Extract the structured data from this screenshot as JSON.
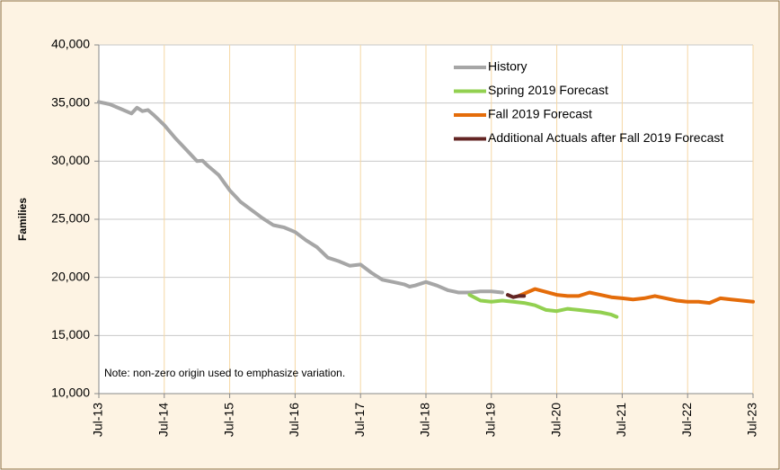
{
  "chart_data": {
    "type": "line",
    "y_label": "Families",
    "note": "Note: non-zero origin used to emphasize variation.",
    "ylim": [
      10000,
      40000
    ],
    "yticks": [
      {
        "value": 10000,
        "label": "10,000"
      },
      {
        "value": 15000,
        "label": "15,000"
      },
      {
        "value": 20000,
        "label": "20,000"
      },
      {
        "value": 25000,
        "label": "25,000"
      },
      {
        "value": 30000,
        "label": "30,000"
      },
      {
        "value": 35000,
        "label": "35,000"
      },
      {
        "value": 40000,
        "label": "40,000"
      }
    ],
    "xlim": [
      "2013-07",
      "2023-07"
    ],
    "xticks": [
      {
        "value": "2013-07",
        "label": "Jul-13"
      },
      {
        "value": "2014-07",
        "label": "Jul-14"
      },
      {
        "value": "2015-07",
        "label": "Jul-15"
      },
      {
        "value": "2016-07",
        "label": "Jul-16"
      },
      {
        "value": "2017-07",
        "label": "Jul-17"
      },
      {
        "value": "2018-07",
        "label": "Jul-18"
      },
      {
        "value": "2019-07",
        "label": "Jul-19"
      },
      {
        "value": "2020-07",
        "label": "Jul-20"
      },
      {
        "value": "2021-07",
        "label": "Jul-21"
      },
      {
        "value": "2022-07",
        "label": "Jul-22"
      },
      {
        "value": "2023-07",
        "label": "Jul-23"
      }
    ],
    "grid": true,
    "legend": "top-right",
    "series": [
      {
        "name": "History",
        "color": "#a6a6a6",
        "x": [
          "2013-07",
          "2013-09",
          "2013-11",
          "2014-01",
          "2014-02",
          "2014-03",
          "2014-04",
          "2014-05",
          "2014-07",
          "2014-09",
          "2014-11",
          "2015-01",
          "2015-02",
          "2015-03",
          "2015-05",
          "2015-07",
          "2015-09",
          "2015-11",
          "2016-01",
          "2016-03",
          "2016-05",
          "2016-07",
          "2016-09",
          "2016-11",
          "2017-01",
          "2017-03",
          "2017-05",
          "2017-07",
          "2017-09",
          "2017-11",
          "2018-01",
          "2018-03",
          "2018-04",
          "2018-05",
          "2018-07",
          "2018-09",
          "2018-11",
          "2019-01",
          "2019-03",
          "2019-05",
          "2019-07",
          "2019-09"
        ],
        "values": [
          35100,
          34900,
          34500,
          34100,
          34600,
          34300,
          34400,
          34000,
          33100,
          32000,
          31000,
          30000,
          30050,
          29600,
          28800,
          27500,
          26500,
          25800,
          25100,
          24500,
          24300,
          23900,
          23200,
          22600,
          21700,
          21400,
          21000,
          21100,
          20400,
          19800,
          19600,
          19400,
          19200,
          19300,
          19600,
          19300,
          18900,
          18700,
          18700,
          18800,
          18800,
          18700
        ]
      },
      {
        "name": "Spring 2019 Forecast",
        "color": "#92d050",
        "x": [
          "2019-03",
          "2019-05",
          "2019-07",
          "2019-09",
          "2019-11",
          "2020-01",
          "2020-03",
          "2020-05",
          "2020-07",
          "2020-09",
          "2020-11",
          "2021-01",
          "2021-03",
          "2021-05",
          "2021-06"
        ],
        "values": [
          18500,
          18000,
          17900,
          18000,
          17900,
          17800,
          17600,
          17200,
          17100,
          17300,
          17200,
          17100,
          17000,
          16800,
          16600
        ]
      },
      {
        "name": "Fall 2019 Forecast",
        "color": "#e46c0a",
        "x": [
          "2019-12",
          "2020-03",
          "2020-07",
          "2020-09",
          "2020-11",
          "2021-01",
          "2021-03",
          "2021-05",
          "2021-07",
          "2021-09",
          "2021-11",
          "2022-01",
          "2022-03",
          "2022-05",
          "2022-07",
          "2022-09",
          "2022-11",
          "2023-01",
          "2023-03",
          "2023-05",
          "2023-07"
        ],
        "values": [
          18400,
          19000,
          18500,
          18400,
          18400,
          18700,
          18500,
          18300,
          18200,
          18100,
          18200,
          18400,
          18200,
          18000,
          17900,
          17900,
          17800,
          18200,
          18100,
          18000,
          17900
        ]
      },
      {
        "name": "Additional Actuals after Fall 2019 Forecast",
        "color": "#632523",
        "x": [
          "2019-10",
          "2019-11",
          "2019-12",
          "2020-01"
        ],
        "values": [
          18500,
          18300,
          18400,
          18400
        ]
      }
    ]
  }
}
